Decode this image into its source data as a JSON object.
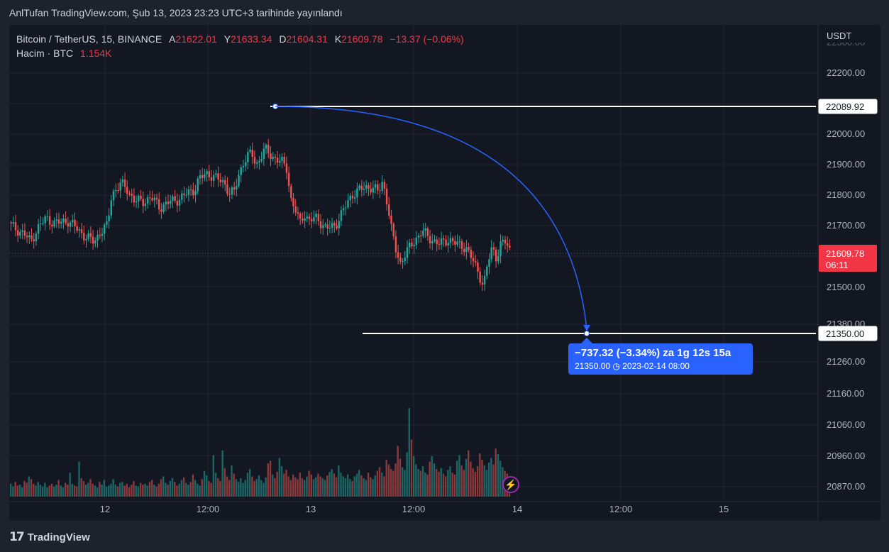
{
  "header": {
    "published": "AnlTufan TradingView.com, Şub 13, 2023 23:23 UTC+3 tarihinde yayınlandı"
  },
  "legend": {
    "symbol": "Bitcoin / TetherUS, 15, BINANCE",
    "open_label": "A",
    "open": "21622.01",
    "high_label": "Y",
    "high": "21633.34",
    "low_label": "D",
    "low": "21604.31",
    "close_label": "K",
    "close": "21609.78",
    "change": "−13.37 (−0.06%)",
    "volume_label": "Hacim · BTC",
    "volume": "1.154K"
  },
  "axis": {
    "currency": "USDT",
    "price_ticks": [
      "22200.00",
      "22000.00",
      "21900.00",
      "21800.00",
      "21700.00",
      "21500.00",
      "21380.00",
      "21260.00",
      "21160.00",
      "21060.00",
      "20960.00",
      "20870.00"
    ],
    "time_labels": [
      "12",
      "12:00",
      "13",
      "12:00",
      "14",
      "12:00",
      "15"
    ]
  },
  "price_tags": {
    "top_line": "22089.92",
    "bottom_line": "21350.00",
    "last_price": "21609.78",
    "countdown": "06:11"
  },
  "measure": {
    "line1": "−737.32 (−3.34%) za 1g 12s 15a",
    "price": "21350.00",
    "date": "2023-02-14  08:00"
  },
  "footer": {
    "brand": "TradingView",
    "logo": "17"
  },
  "colors": {
    "up": "#26a69a",
    "down": "#ef5350",
    "line": "#ffffff",
    "arc": "#2962ff",
    "last_price": "#f23645",
    "background": "#131722",
    "grid": "#1f2430"
  },
  "chart_data": {
    "type": "candlestick",
    "title": "Bitcoin / TetherUS, 15, BINANCE",
    "interval": "15m",
    "x_labels": [
      "12",
      "12:00",
      "13",
      "12:00",
      "14",
      "12:00",
      "15"
    ],
    "ylim": [
      21330,
      22280
    ],
    "close_path": [
      [
        0,
        21700
      ],
      [
        6,
        21670
      ],
      [
        9,
        21640
      ],
      [
        12,
        21690
      ],
      [
        16,
        21730
      ],
      [
        20,
        21710
      ],
      [
        26,
        21720
      ],
      [
        30,
        21690
      ],
      [
        34,
        21660
      ],
      [
        38,
        21640
      ],
      [
        41,
        21680
      ],
      [
        44,
        21700
      ],
      [
        46,
        21820
      ],
      [
        50,
        21860
      ],
      [
        53,
        21840
      ],
      [
        56,
        21800
      ],
      [
        60,
        21790
      ],
      [
        64,
        21810
      ],
      [
        68,
        21770
      ],
      [
        72,
        21790
      ],
      [
        76,
        21800
      ],
      [
        80,
        21820
      ],
      [
        84,
        21840
      ],
      [
        86,
        21880
      ],
      [
        90,
        21900
      ],
      [
        94,
        21880
      ],
      [
        98,
        21860
      ],
      [
        100,
        21820
      ],
      [
        102,
        21830
      ],
      [
        104,
        21890
      ],
      [
        106,
        21940
      ],
      [
        108,
        21960
      ],
      [
        110,
        21980
      ],
      [
        112,
        21930
      ],
      [
        116,
        21990
      ],
      [
        120,
        21960
      ],
      [
        124,
        21940
      ],
      [
        126,
        21920
      ],
      [
        128,
        21800
      ],
      [
        130,
        21760
      ],
      [
        132,
        21710
      ],
      [
        134,
        21750
      ],
      [
        136,
        21720
      ],
      [
        140,
        21730
      ],
      [
        144,
        21690
      ],
      [
        148,
        21700
      ],
      [
        152,
        21760
      ],
      [
        156,
        21820
      ],
      [
        160,
        21840
      ],
      [
        164,
        21850
      ],
      [
        168,
        21830
      ],
      [
        170,
        21870
      ],
      [
        172,
        21790
      ],
      [
        174,
        21680
      ],
      [
        176,
        21610
      ],
      [
        178,
        21560
      ],
      [
        180,
        21590
      ],
      [
        184,
        21640
      ],
      [
        188,
        21680
      ],
      [
        192,
        21650
      ],
      [
        196,
        21630
      ],
      [
        200,
        21650
      ],
      [
        204,
        21630
      ],
      [
        208,
        21620
      ],
      [
        211,
        21570
      ],
      [
        214,
        21520
      ],
      [
        216,
        21470
      ],
      [
        218,
        21560
      ],
      [
        220,
        21620
      ],
      [
        222,
        21580
      ],
      [
        224,
        21630
      ],
      [
        226,
        21640
      ],
      [
        228,
        21610
      ]
    ],
    "volume_btc": [
      1.4,
      1.1,
      1.6,
      1.2,
      1.3,
      1.0,
      1.7,
      1.5,
      2.2,
      1.9,
      1.4,
      1.2,
      1.6,
      1.3,
      1.1,
      1.5,
      1.0,
      1.2,
      1.4,
      1.1,
      1.3,
      1.8,
      1.2,
      1.0,
      1.5,
      1.3,
      2.6,
      1.4,
      1.2,
      1.1,
      3.8,
      2.0,
      1.7,
      1.3,
      1.5,
      1.9,
      1.4,
      1.2,
      1.0,
      1.6,
      1.3,
      1.8,
      1.1,
      1.2,
      1.4,
      1.9,
      1.3,
      1.1,
      1.5,
      1.6,
      1.2,
      1.4,
      1.0,
      1.3,
      1.7,
      1.2,
      1.1,
      1.5,
      1.3,
      1.4,
      1.2,
      1.6,
      1.8,
      1.3,
      1.1,
      1.4,
      1.9,
      2.2,
      1.5,
      1.3,
      1.7,
      2.0,
      1.6,
      1.2,
      1.4,
      1.8,
      2.1,
      1.5,
      1.3,
      1.6,
      2.4,
      1.8,
      1.4,
      1.2,
      1.9,
      2.8,
      2.3,
      1.7,
      1.5,
      4.5,
      2.6,
      2.0,
      1.7,
      5.0,
      3.1,
      2.2,
      1.8,
      3.4,
      2.5,
      1.9,
      1.6,
      2.0,
      1.5,
      1.8,
      2.6,
      3.0,
      2.2,
      1.7,
      1.9,
      2.3,
      1.8,
      1.5,
      2.1,
      3.6,
      3.9,
      2.4,
      2.0,
      2.7,
      4.2,
      3.3,
      2.5,
      2.9,
      2.2,
      1.8,
      2.4,
      2.1,
      1.9,
      2.6,
      2.0,
      1.8,
      2.2,
      2.8,
      2.4,
      1.9,
      2.1,
      2.5,
      2.2,
      2.0,
      1.8,
      2.3,
      2.7,
      3.0,
      2.5,
      2.1,
      3.4,
      2.6,
      2.2,
      2.0,
      2.4,
      1.9,
      1.7,
      2.2,
      2.5,
      2.9,
      2.3,
      2.0,
      1.8,
      2.6,
      2.1,
      1.9,
      2.3,
      2.8,
      3.2,
      2.6,
      2.2,
      4.0,
      3.5,
      3.0,
      2.8,
      3.6,
      5.5,
      4.1,
      3.2,
      2.9,
      4.8,
      9.6,
      6.2,
      4.4,
      3.5,
      3.0,
      2.8,
      3.3,
      2.6,
      2.4,
      3.8,
      4.4,
      3.6,
      3.0,
      2.7,
      3.1,
      2.5,
      2.2,
      2.9,
      3.3,
      2.6,
      2.4,
      3.9,
      4.5,
      3.4,
      2.9,
      4.1,
      5.0,
      3.8,
      3.1,
      2.7,
      3.3,
      4.7,
      4.0,
      3.4,
      2.9,
      3.7,
      4.2,
      3.5,
      5.2,
      4.6,
      3.9,
      3.2,
      2.8,
      2.5,
      1.2
    ],
    "drawings": {
      "high_line": 22089.92,
      "low_line": 21350.0,
      "change": -737.32,
      "change_pct": -3.34
    }
  }
}
